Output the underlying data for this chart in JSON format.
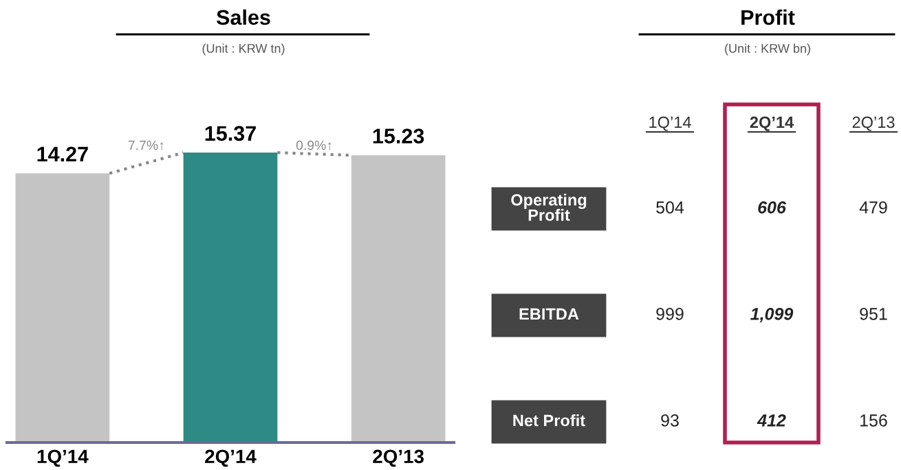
{
  "chart_data": [
    {
      "type": "bar",
      "title": "Sales",
      "subtitle": "(Unit : KRW tn)",
      "categories": [
        "1Q’14",
        "2Q’14",
        "2Q’13"
      ],
      "values": [
        14.27,
        15.37,
        15.23
      ],
      "colors": [
        "#c4c4c4",
        "#2e8a84",
        "#c4c4c4"
      ],
      "data_labels": true,
      "annotations": [
        "7.7%↑",
        "0.9%↑"
      ],
      "tick_labels": "x"
    },
    {
      "type": "other",
      "title": "Profit",
      "subtitle": "(Unit : KRW bn)",
      "categories": [
        "1Q’14",
        "2Q’14",
        "2Q’13"
      ],
      "y_categories": [
        "Operating Profit",
        "EBITDA",
        "Net Profit"
      ],
      "cell_labels": [
        [
          "504",
          "606",
          "479"
        ],
        [
          "999",
          "1,099",
          "951"
        ],
        [
          "93",
          "412",
          "156"
        ]
      ],
      "colors": [
        null,
        "#b02050",
        null
      ]
    }
  ]
}
